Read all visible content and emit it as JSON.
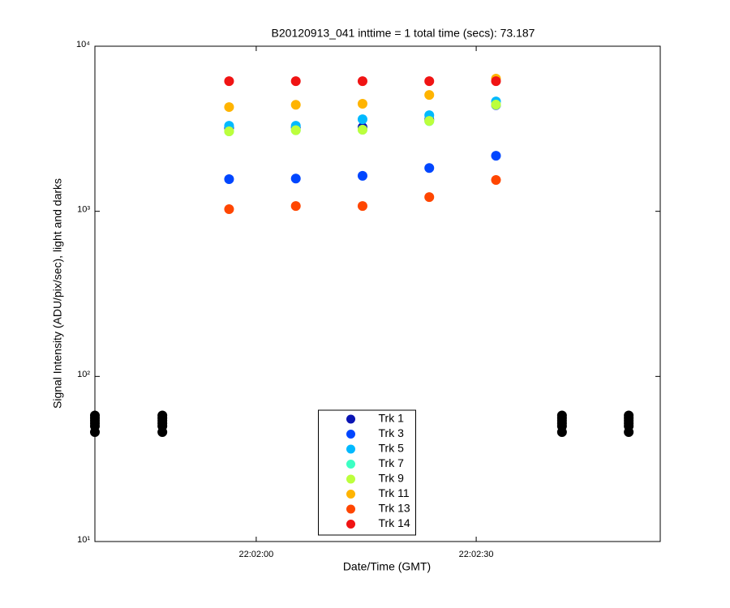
{
  "chart_data": {
    "type": "scatter",
    "title": "B20120913_041 inttime = 1 total time (secs): 73.187",
    "xlabel": "Date/Time (GMT)",
    "ylabel": "Signal Intensity (ADU/pix/sec), light and darks",
    "yscale": "log",
    "ylim": [
      10,
      10000
    ],
    "yticks": [
      {
        "value": 10,
        "label": "10¹"
      },
      {
        "value": 100,
        "label": "10²"
      },
      {
        "value": 1000,
        "label": "10³"
      },
      {
        "value": 10000,
        "label": "10⁴"
      }
    ],
    "xlim": [
      "22:01:38",
      "22:02:55.1"
    ],
    "xticks": [
      "22:02:00",
      "22:02:30"
    ],
    "legend": "bottom-center",
    "x": [
      "22:01:56.3",
      "22:02:05.4",
      "22:02:14.5",
      "22:02:23.6",
      "22:02:32.7"
    ],
    "series": [
      {
        "name": "Trk 1",
        "color": "#0a14b4",
        "values": [
          3200,
          3220,
          3230,
          3600,
          4400
        ]
      },
      {
        "name": "Trk 3",
        "color": "#0046ff",
        "values": [
          1565,
          1580,
          1640,
          1830,
          2170
        ]
      },
      {
        "name": "Trk 5",
        "color": "#00b9ff",
        "values": [
          3300,
          3300,
          3610,
          3820,
          4630
        ]
      },
      {
        "name": "Trk 7",
        "color": "#3cffc3",
        "values": [
          3050,
          3100,
          3120,
          3520,
          4420
        ]
      },
      {
        "name": "Trk 9",
        "color": "#bcff3c",
        "values": [
          3050,
          3100,
          3120,
          3530,
          4430
        ]
      },
      {
        "name": "Trk 11",
        "color": "#ffb400",
        "values": [
          4280,
          4420,
          4480,
          5070,
          6360
        ]
      },
      {
        "name": "Trk 13",
        "color": "#ff4600",
        "values": [
          1030,
          1077,
          1077,
          1220,
          1549
        ]
      },
      {
        "name": "Trk 14",
        "color": "#f01414",
        "values": [
          6140,
          6140,
          6140,
          6140,
          6140
        ]
      }
    ],
    "darks": {
      "color": "#000000",
      "x": [
        "22:01:38",
        "22:01:38",
        "22:01:38",
        "22:01:38",
        "22:01:38",
        "22:01:38",
        "22:01:47.2",
        "22:01:47.2",
        "22:01:47.2",
        "22:01:47.2",
        "22:01:47.2",
        "22:01:47.2",
        "22:02:41.7",
        "22:02:41.7",
        "22:02:41.7",
        "22:02:41.7",
        "22:02:41.7",
        "22:02:41.7",
        "22:02:50.8",
        "22:02:50.8",
        "22:02:50.8",
        "22:02:50.8",
        "22:02:50.8",
        "22:02:50.8"
      ],
      "values": [
        58,
        56,
        54,
        52,
        50,
        46,
        58,
        56,
        54,
        52,
        50,
        46,
        58,
        56,
        54,
        52,
        50,
        46,
        58,
        56,
        54,
        52,
        50,
        46
      ]
    }
  }
}
